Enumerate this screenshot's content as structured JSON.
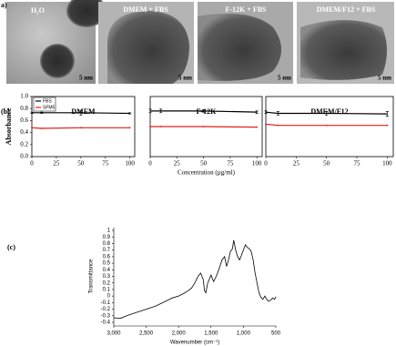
{
  "panel_a": {
    "label": "a)",
    "images": [
      {
        "caption": "H₂O",
        "scale_bar": "5 nm"
      },
      {
        "caption": "DMEM + FBS",
        "scale_bar": "5 nm"
      },
      {
        "caption": "F-12K + FBS",
        "scale_bar": "5 nm"
      },
      {
        "caption": "DMEM/F12 + FBS",
        "scale_bar": "5 nm"
      }
    ]
  },
  "panel_labels": {
    "b": "(b)",
    "c": "(c)"
  },
  "chart_data": [
    {
      "type": "line",
      "title": "DMEM",
      "y_label": "Absorbance",
      "legend": true,
      "legend_corner": "top-left",
      "x": [
        0,
        10,
        50,
        100
      ],
      "xlim": [
        0,
        105
      ],
      "xticks": [
        0,
        25,
        50,
        75,
        100
      ],
      "ylim": [
        0,
        1
      ],
      "yticks": [
        {
          "value": 0,
          "label": "0.0"
        },
        0.2,
        0.4,
        0.6,
        0.8,
        {
          "value": 1,
          "label": "1.0"
        }
      ],
      "series": [
        {
          "name": "FBS",
          "color": "#000000",
          "values": [
            0.73,
            0.73,
            0.73,
            0.72
          ],
          "errors": [
            0.01,
            0.01,
            0.04,
            0.01
          ]
        },
        {
          "name": "SFM5",
          "color": "#e0201b",
          "values": [
            0.48,
            0.47,
            0.48,
            0.48
          ]
        }
      ]
    },
    {
      "type": "line",
      "title": "F-12K",
      "x_label": "Concentration (µg/ml)",
      "x": [
        0,
        10,
        50,
        100
      ],
      "xlim": [
        0,
        105
      ],
      "xticks": [
        0,
        25,
        50,
        75,
        100
      ],
      "ylim": [
        0,
        1
      ],
      "series": [
        {
          "name": "FBS",
          "color": "#000000",
          "values": [
            0.76,
            0.76,
            0.76,
            0.74
          ],
          "errors": [
            0.03,
            0.03,
            0.02,
            0.02
          ]
        },
        {
          "name": "SFM5",
          "color": "#e0201b",
          "values": [
            0.5,
            0.5,
            0.5,
            0.49
          ]
        }
      ]
    },
    {
      "type": "line",
      "title": "DMEM/F12",
      "x": [
        0,
        10,
        50,
        100
      ],
      "xlim": [
        0,
        105
      ],
      "xticks": [
        0,
        25,
        50,
        75,
        100
      ],
      "ylim": [
        0,
        1
      ],
      "series": [
        {
          "name": "FBS",
          "color": "#000000",
          "values": [
            0.74,
            0.72,
            0.72,
            0.71
          ],
          "errors": [
            0.02,
            0.03,
            0.03,
            0.04
          ]
        },
        {
          "name": "SFM5",
          "color": "#e0201b",
          "values": [
            0.54,
            0.52,
            0.52,
            0.52
          ]
        }
      ]
    },
    {
      "type": "line",
      "y_label": "Transmittance",
      "x_label": "Wavenumber (cm⁻¹)",
      "xlim": [
        3000,
        500
      ],
      "xticks": [
        {
          "value": 3000,
          "label": "3,000"
        },
        {
          "value": 2500,
          "label": "2,500"
        },
        {
          "value": 2000,
          "label": "2,000"
        },
        {
          "value": 1500,
          "label": "1,500"
        },
        {
          "value": 1000,
          "label": "1,000"
        },
        500
      ],
      "ylim": [
        -0.4,
        1
      ],
      "yticks": [
        -0.4,
        -0.3,
        -0.2,
        -0.1,
        0,
        0.1,
        0.2,
        0.3,
        0.4,
        0.5,
        0.6,
        0.7,
        0.8,
        0.9,
        1
      ],
      "series": [
        {
          "color": "#000000",
          "x": [
            3000,
            2900,
            2800,
            2650,
            2500,
            2350,
            2200,
            2100,
            2000,
            1900,
            1800,
            1750,
            1700,
            1660,
            1620,
            1600,
            1580,
            1550,
            1500,
            1460,
            1420,
            1380,
            1330,
            1290,
            1260,
            1230,
            1200,
            1170,
            1150,
            1120,
            1090,
            1060,
            1030,
            1000,
            970,
            940,
            910,
            880,
            850,
            820,
            790,
            760,
            730,
            700,
            670,
            640,
            610,
            580,
            550,
            520,
            500
          ],
          "values": [
            -0.33,
            -0.34,
            -0.3,
            -0.25,
            -0.2,
            -0.15,
            -0.08,
            -0.03,
            0.0,
            0.05,
            0.12,
            0.2,
            0.3,
            0.35,
            0.25,
            0.08,
            0.05,
            0.2,
            0.32,
            0.22,
            0.3,
            0.4,
            0.55,
            0.6,
            0.45,
            0.55,
            0.68,
            0.72,
            0.85,
            0.7,
            0.6,
            0.55,
            0.62,
            0.7,
            0.78,
            0.74,
            0.72,
            0.68,
            0.55,
            0.35,
            0.2,
            0.05,
            -0.02,
            -0.05,
            0.0,
            -0.05,
            -0.08,
            -0.06,
            -0.03,
            -0.05,
            -0.01
          ]
        }
      ]
    }
  ]
}
